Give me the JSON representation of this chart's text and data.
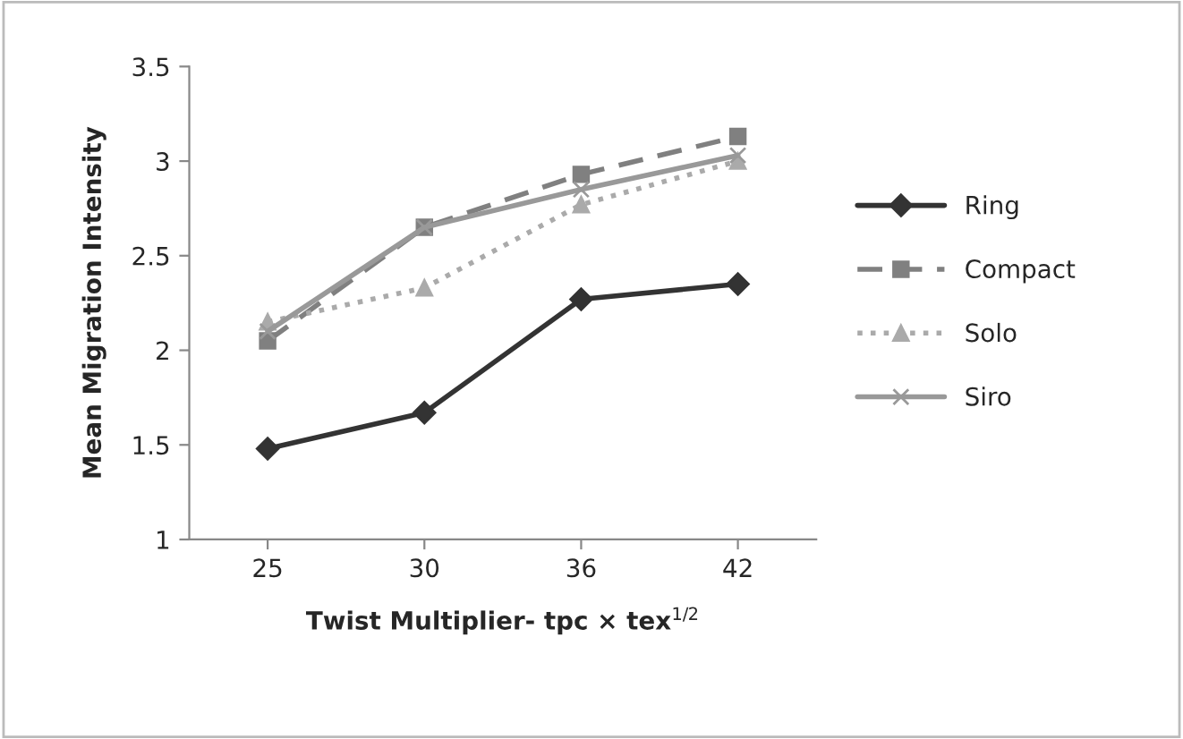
{
  "chart_data": {
    "type": "line",
    "xlabel": "Twist Multiplier- tpc × tex$^{1/2}$",
    "ylabel": "Mean Migration Intensity",
    "categories": [
      "25",
      "30",
      "36",
      "42"
    ],
    "ylim": [
      1,
      3.5
    ],
    "yticks": [
      1,
      1.5,
      2,
      2.5,
      3,
      3.5
    ],
    "grid": false,
    "legend": "right",
    "series": [
      {
        "name": "Ring",
        "color": "#333333",
        "marker": "diamond",
        "line_style": "solid",
        "values": [
          1.48,
          1.67,
          2.27,
          2.35
        ]
      },
      {
        "name": "Compact",
        "color": "#808080",
        "marker": "square",
        "line_style": "dashed",
        "values": [
          2.05,
          2.65,
          2.93,
          3.13
        ]
      },
      {
        "name": "Solo",
        "color": "#aaaaaa",
        "marker": "triangle",
        "line_style": "dotted",
        "values": [
          2.15,
          2.33,
          2.77,
          3.0
        ]
      },
      {
        "name": "Siro",
        "color": "#999999",
        "marker": "cross",
        "line_style": "solid",
        "values": [
          2.1,
          2.65,
          2.85,
          3.03
        ]
      }
    ]
  }
}
